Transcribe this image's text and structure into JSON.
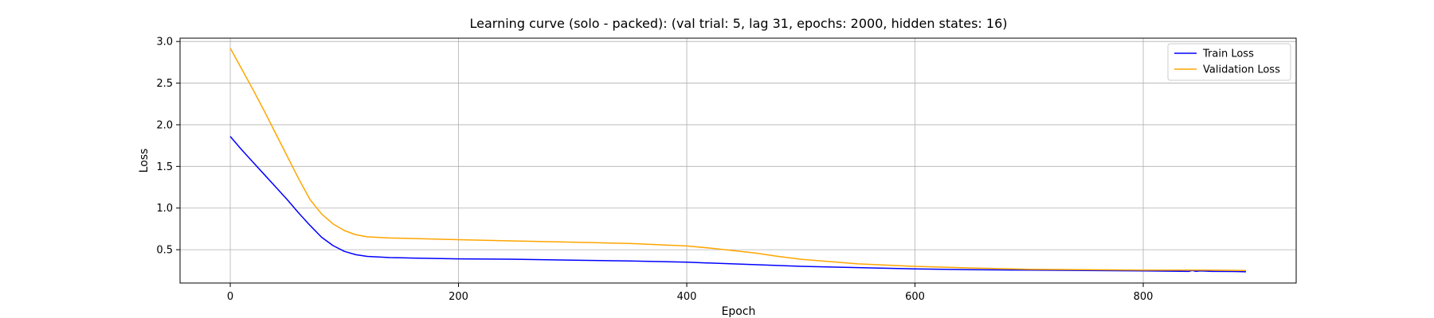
{
  "chart_data": {
    "type": "line",
    "title": "Learning curve (solo - packed): (val trial: 5, lag 31, epochs: 2000, hidden states: 16)",
    "xlabel": "Epoch",
    "ylabel": "Loss",
    "xlim": [
      -44,
      934
    ],
    "ylim": [
      0.1,
      3.04
    ],
    "xticks": [
      0,
      200,
      400,
      600,
      800
    ],
    "yticks": [
      0.5,
      1.0,
      1.5,
      2.0,
      2.5,
      3.0
    ],
    "xtick_labels": [
      "0",
      "200",
      "400",
      "600",
      "800"
    ],
    "ytick_labels": [
      "0.5",
      "1.0",
      "1.5",
      "2.0",
      "2.5",
      "3.0"
    ],
    "grid": true,
    "legend_position": "top-right",
    "series": [
      {
        "name": "Train Loss",
        "color": "#0000ff",
        "x": [
          0,
          10,
          20,
          30,
          40,
          50,
          60,
          70,
          80,
          90,
          100,
          110,
          120,
          140,
          160,
          200,
          250,
          300,
          350,
          400,
          450,
          500,
          550,
          600,
          650,
          700,
          750,
          800,
          840,
          843,
          846,
          850,
          860,
          880,
          890
        ],
        "y": [
          1.86,
          1.7,
          1.55,
          1.4,
          1.25,
          1.1,
          0.94,
          0.79,
          0.65,
          0.55,
          0.48,
          0.44,
          0.42,
          0.405,
          0.4,
          0.39,
          0.385,
          0.375,
          0.365,
          0.35,
          0.325,
          0.3,
          0.285,
          0.27,
          0.26,
          0.255,
          0.25,
          0.245,
          0.24,
          0.25,
          0.24,
          0.245,
          0.24,
          0.238,
          0.235
        ]
      },
      {
        "name": "Validation Loss",
        "color": "#ffa500",
        "x": [
          0,
          10,
          20,
          30,
          40,
          50,
          60,
          70,
          80,
          90,
          100,
          110,
          120,
          140,
          160,
          200,
          250,
          300,
          350,
          400,
          420,
          440,
          460,
          480,
          500,
          550,
          600,
          650,
          700,
          750,
          800,
          850,
          890
        ],
        "y": [
          2.92,
          2.67,
          2.42,
          2.16,
          1.89,
          1.62,
          1.35,
          1.1,
          0.93,
          0.81,
          0.73,
          0.68,
          0.655,
          0.64,
          0.635,
          0.62,
          0.605,
          0.59,
          0.575,
          0.545,
          0.52,
          0.49,
          0.46,
          0.42,
          0.385,
          0.33,
          0.3,
          0.28,
          0.265,
          0.26,
          0.255,
          0.255,
          0.25
        ]
      }
    ]
  }
}
